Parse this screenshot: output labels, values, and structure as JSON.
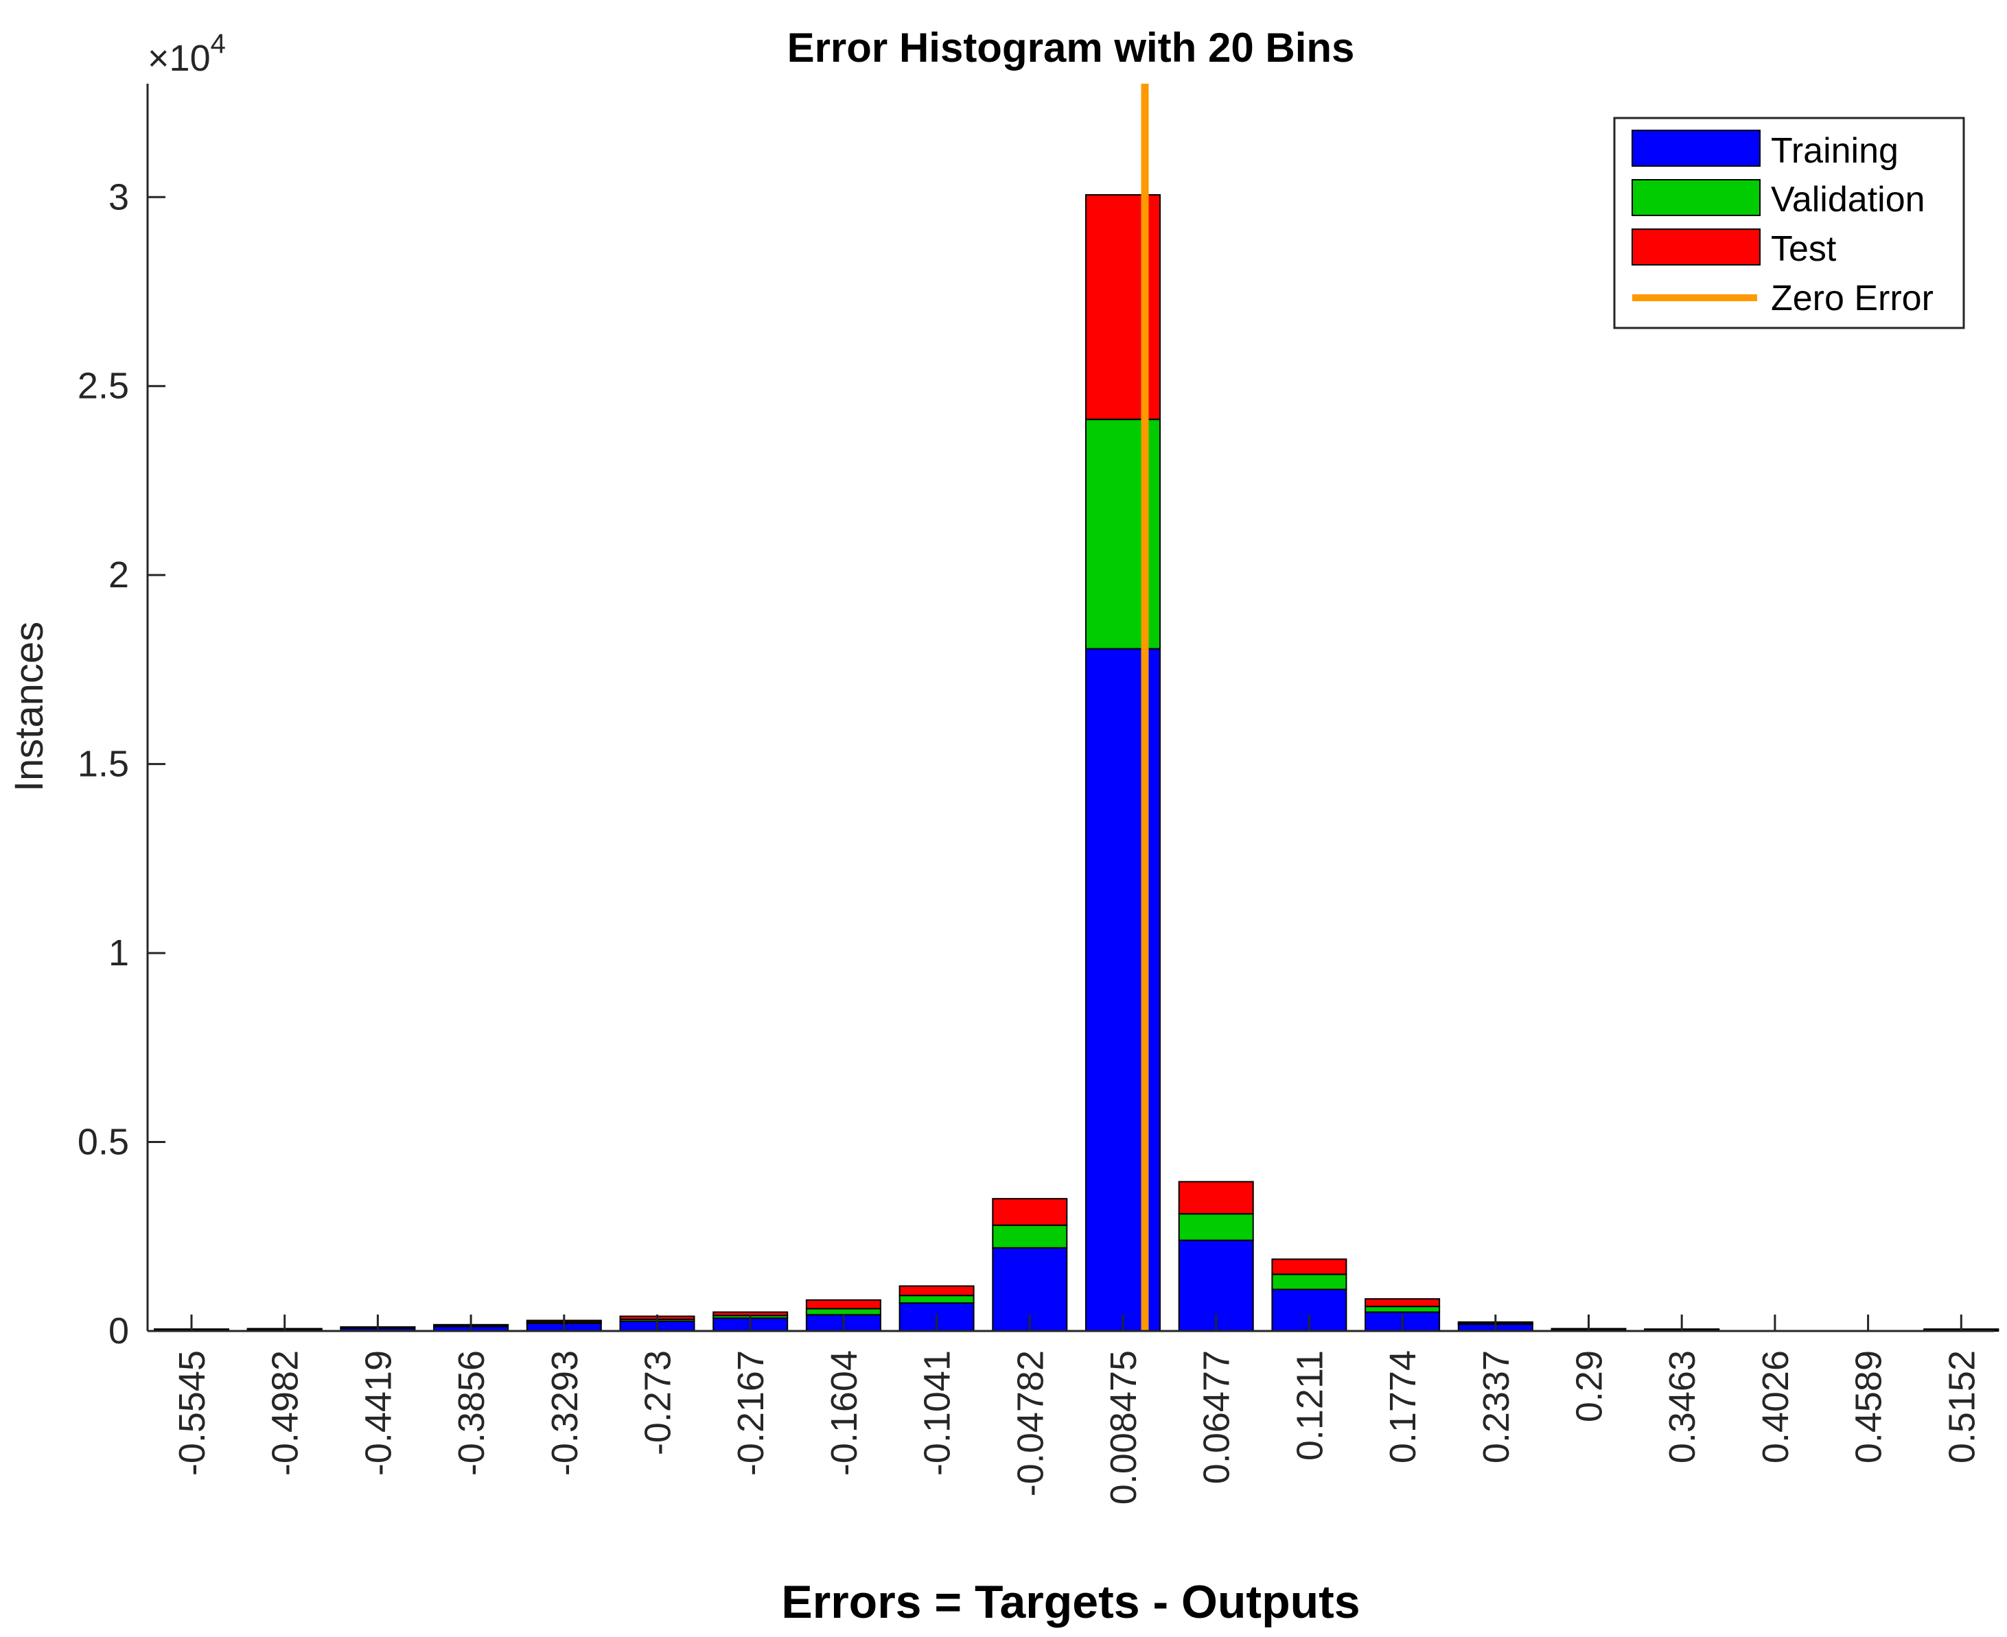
{
  "chart_data": {
    "type": "bar",
    "stacked": true,
    "title": "Error Histogram with 20 Bins",
    "xlabel": "Errors = Targets - Outputs",
    "ylabel": "Instances",
    "y_exponent_label": "×10",
    "y_exponent_power": "4",
    "ylim": [
      0,
      33000
    ],
    "yticks": [
      0,
      5000,
      10000,
      15000,
      20000,
      25000,
      30000
    ],
    "ytick_labels": [
      "0",
      "0.5",
      "1",
      "1.5",
      "2",
      "2.5",
      "3"
    ],
    "categories": [
      "-0.5545",
      "-0.4982",
      "-0.4419",
      "-0.3856",
      "-0.3293",
      "-0.273",
      "-0.2167",
      "-0.1604",
      "-0.1041",
      "-0.04782",
      "0.008475",
      "0.06477",
      "0.1211",
      "0.1774",
      "0.2337",
      "0.29",
      "0.3463",
      "0.4026",
      "0.4589",
      "0.5152"
    ],
    "series": [
      {
        "name": "Training",
        "color": "#0000ff",
        "values": [
          20,
          30,
          70,
          120,
          200,
          260,
          340,
          430,
          740,
          2200,
          18050,
          2400,
          1100,
          500,
          180,
          30,
          20,
          0,
          0,
          20
        ]
      },
      {
        "name": "Validation",
        "color": "#00cc00",
        "values": [
          3,
          5,
          10,
          20,
          40,
          50,
          70,
          160,
          200,
          600,
          6070,
          700,
          400,
          150,
          30,
          5,
          3,
          0,
          0,
          3
        ]
      },
      {
        "name": "Test",
        "color": "#ff0000",
        "values": [
          3,
          5,
          10,
          20,
          40,
          80,
          90,
          230,
          250,
          700,
          5940,
          850,
          400,
          200,
          20,
          5,
          3,
          0,
          0,
          3
        ]
      }
    ],
    "zero_error": {
      "name": "Zero Error",
      "x_bin_position": 10,
      "color": "#ff9900"
    },
    "legend": {
      "position": "top-right",
      "entries": [
        "Training",
        "Validation",
        "Test",
        "Zero Error"
      ]
    },
    "grid": false
  }
}
